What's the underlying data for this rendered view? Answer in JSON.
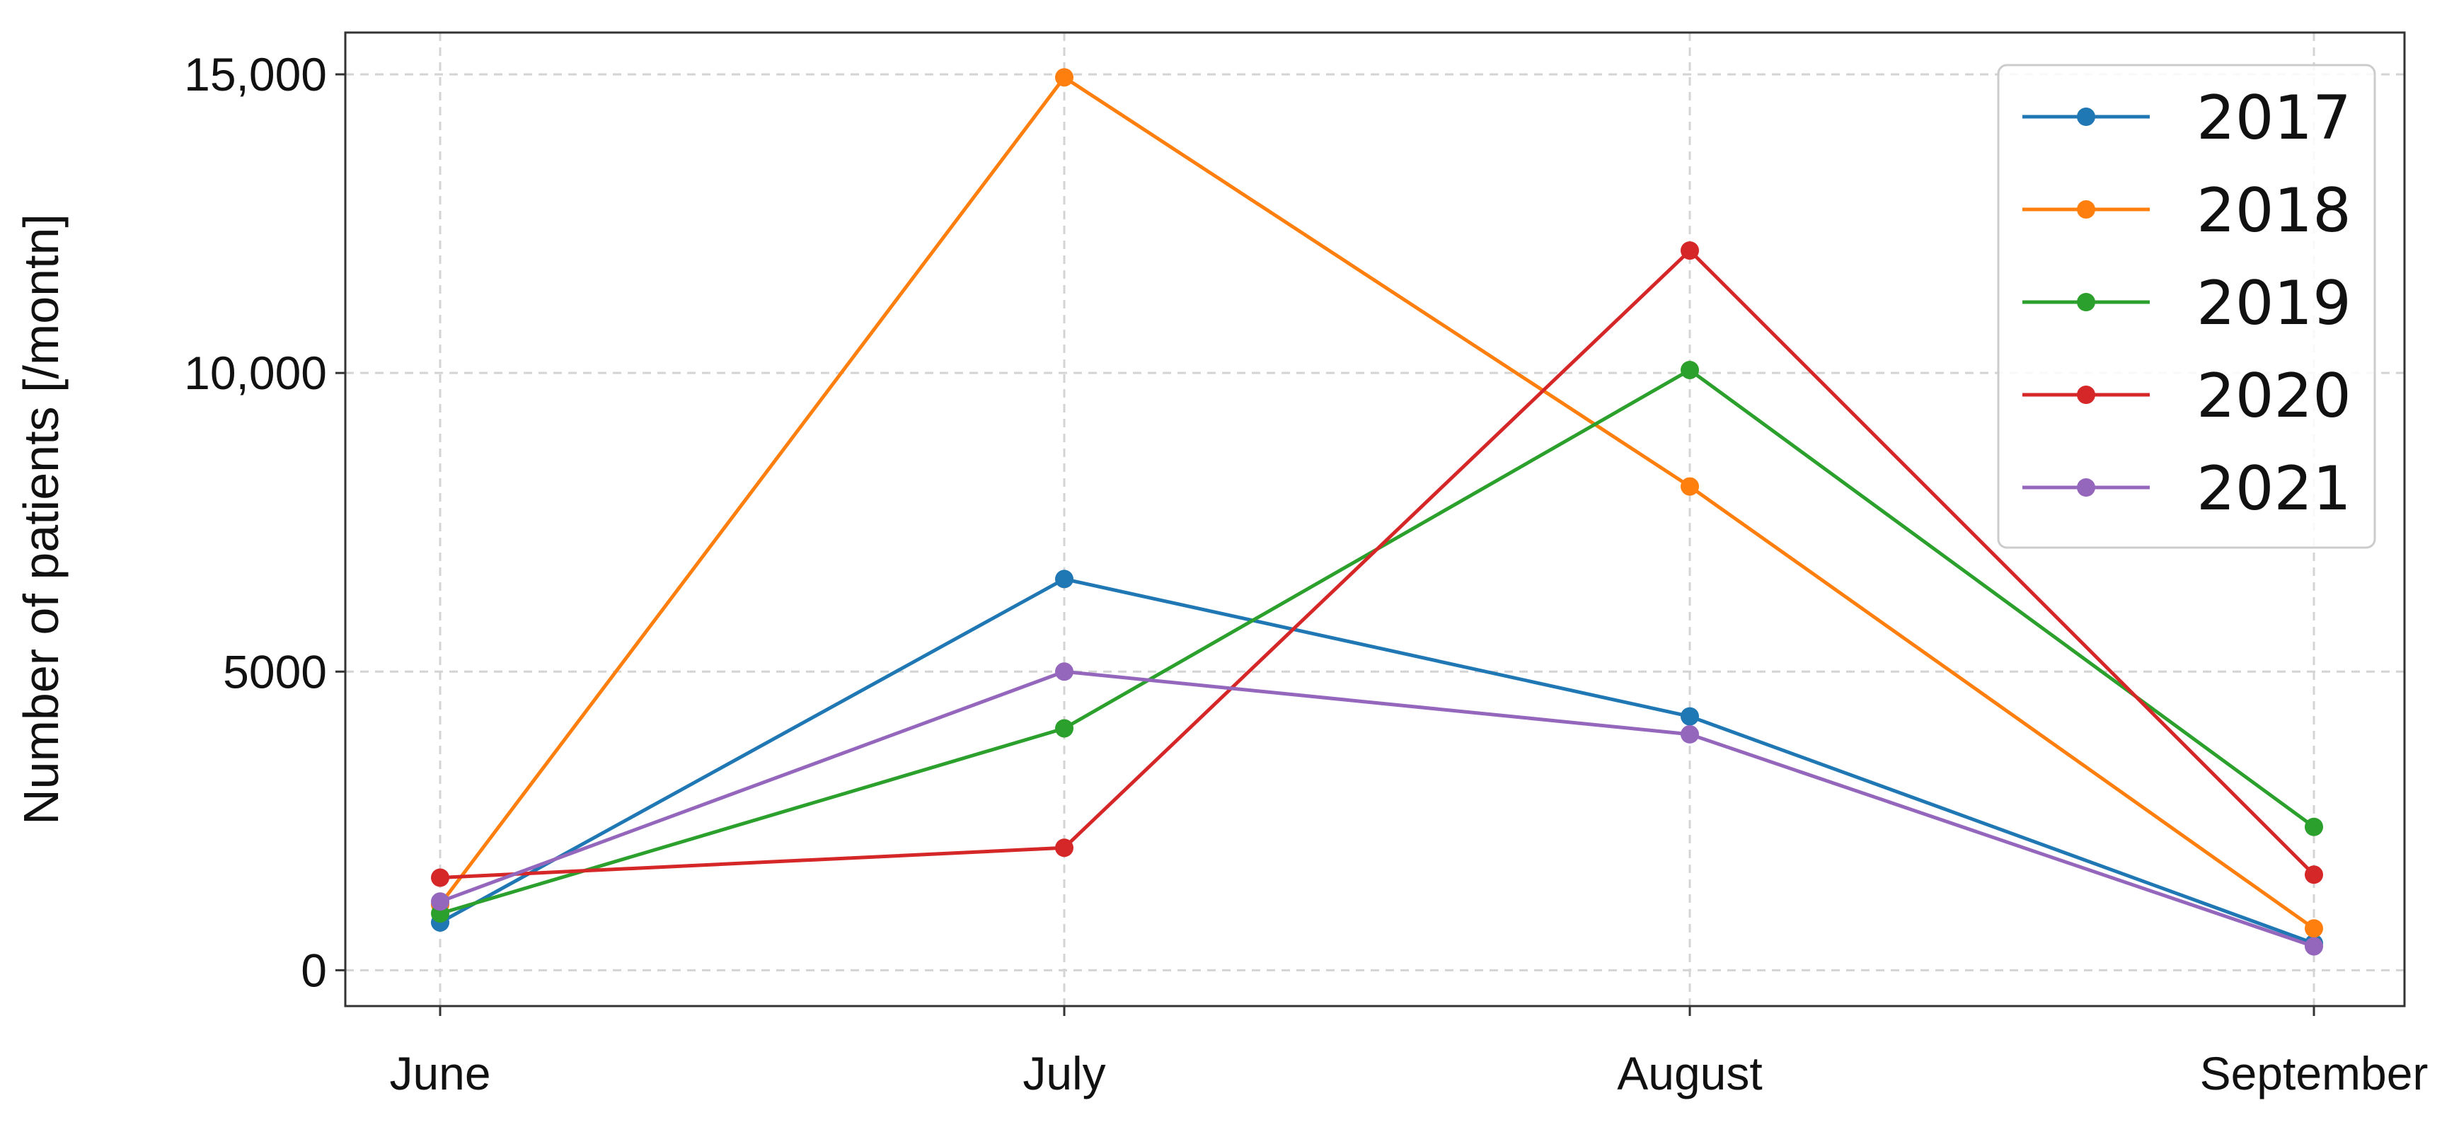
{
  "chart_data": {
    "type": "line",
    "title": "",
    "xlabel": "",
    "ylabel": "Number of patients [/montn]",
    "categories": [
      "June",
      "July",
      "August",
      "September"
    ],
    "ylim": [
      -600,
      15700
    ],
    "yticks": [
      {
        "value": 0,
        "label": "0"
      },
      {
        "value": 5000,
        "label": "5000"
      },
      {
        "value": 10000,
        "label": "10,000"
      },
      {
        "value": 15000,
        "label": "15,000"
      }
    ],
    "grid": true,
    "legend_position": "top-right",
    "series": [
      {
        "name": "2017",
        "color": "#1f77b4",
        "values": [
          800,
          6550,
          4250,
          450
        ]
      },
      {
        "name": "2018",
        "color": "#ff7f0e",
        "values": [
          1100,
          14950,
          8100,
          700
        ]
      },
      {
        "name": "2019",
        "color": "#2ca02c",
        "values": [
          950,
          4050,
          10050,
          2400
        ]
      },
      {
        "name": "2020",
        "color": "#d62728",
        "values": [
          1550,
          2050,
          12050,
          1600
        ]
      },
      {
        "name": "2021",
        "color": "#9467bd",
        "values": [
          1150,
          5000,
          3950,
          400
        ]
      }
    ]
  }
}
